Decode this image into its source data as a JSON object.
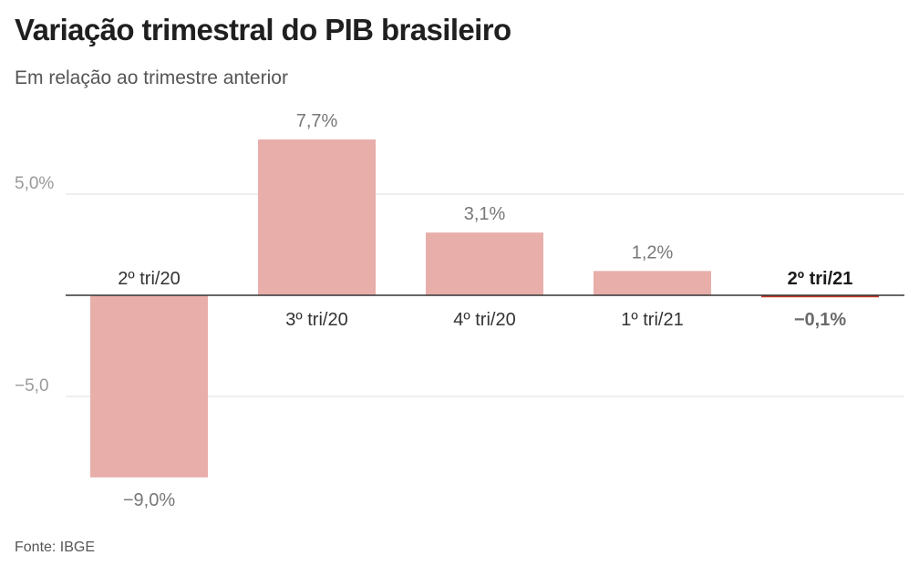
{
  "header": {
    "title": "Variação trimestral do PIB brasileiro",
    "subtitle": "Em relação ao trimestre anterior"
  },
  "footer": {
    "source": "Fonte: IBGE"
  },
  "colors": {
    "bar": "#e8aeaa",
    "highlight_bar": "#c0392b",
    "grid": "#dddddd",
    "baseline": "#333333"
  },
  "chart_data": {
    "type": "bar",
    "title": "Variação trimestral do PIB brasileiro",
    "subtitle": "Em relação ao trimestre anterior",
    "categories": [
      "2º tri/20",
      "3º tri/20",
      "4º tri/20",
      "1º tri/21",
      "2º tri/21"
    ],
    "values": [
      -9.0,
      7.7,
      3.1,
      1.2,
      -0.1
    ],
    "value_labels": [
      "−9,0%",
      "7,7%",
      "3,1%",
      "1,2%",
      "−0,1%"
    ],
    "highlight_index": 4,
    "y_ticks": [
      5.0,
      -5.0
    ],
    "y_tick_labels": [
      "5,0%",
      "−5,0"
    ],
    "ylim": [
      -10.5,
      8.5
    ],
    "grid": true,
    "legend": "none"
  }
}
